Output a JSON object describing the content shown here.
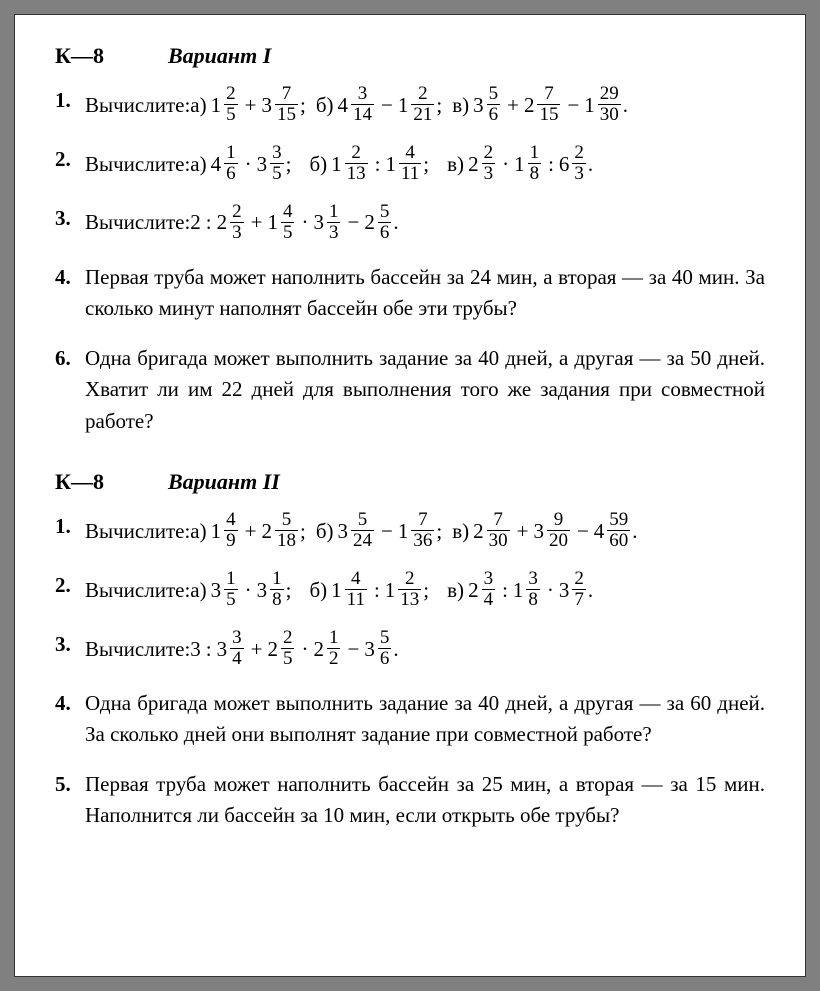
{
  "border_color": "#808080",
  "page_bg": "#ffffff",
  "text_color": "#000000",
  "font_family": "Georgia, Times New Roman, serif",
  "font_size_main": 21,
  "font_size_header": 22,
  "variants": [
    {
      "k_label": "К—8",
      "variant_label": "Вариант I",
      "problems": [
        {
          "num": "1.",
          "type": "math",
          "prefix": "Вычислите: ",
          "parts": [
            {
              "label": "а)",
              "terms": [
                {
                  "w": "1",
                  "n": "2",
                  "d": "5"
                },
                "+",
                {
                  "w": "3",
                  "n": "7",
                  "d": "15"
                }
              ],
              "suffix": ";"
            },
            {
              "label": "б)",
              "terms": [
                {
                  "w": "4",
                  "n": "3",
                  "d": "14"
                },
                "−",
                {
                  "w": "1",
                  "n": "2",
                  "d": "21"
                }
              ],
              "suffix": ";"
            },
            {
              "label": "в)",
              "terms": [
                {
                  "w": "3",
                  "n": "5",
                  "d": "6"
                },
                "+",
                {
                  "w": "2",
                  "n": "7",
                  "d": "15"
                },
                "−",
                {
                  "w": "1",
                  "n": "29",
                  "d": "30"
                }
              ],
              "suffix": "."
            }
          ]
        },
        {
          "num": "2.",
          "type": "math",
          "prefix": "Вычислите: ",
          "parts": [
            {
              "label": "а)",
              "terms": [
                {
                  "w": "4",
                  "n": "1",
                  "d": "6"
                },
                "·",
                {
                  "w": "3",
                  "n": "3",
                  "d": "5"
                }
              ],
              "suffix": ";",
              "wide": true
            },
            {
              "label": "б)",
              "terms": [
                {
                  "w": "1",
                  "n": "2",
                  "d": "13"
                },
                ":",
                {
                  "w": "1",
                  "n": "4",
                  "d": "11"
                }
              ],
              "suffix": ";",
              "wide": true
            },
            {
              "label": "в)",
              "terms": [
                {
                  "w": "2",
                  "n": "2",
                  "d": "3"
                },
                "·",
                {
                  "w": "1",
                  "n": "1",
                  "d": "8"
                },
                ":",
                {
                  "w": "6",
                  "n": "2",
                  "d": "3"
                }
              ],
              "suffix": "."
            }
          ]
        },
        {
          "num": "3.",
          "type": "math",
          "prefix": "Вычислите: ",
          "parts": [
            {
              "label": "",
              "terms": [
                "2",
                ":",
                {
                  "w": "2",
                  "n": "2",
                  "d": "3"
                },
                "+",
                {
                  "w": "1",
                  "n": "4",
                  "d": "5"
                },
                "·",
                {
                  "w": "3",
                  "n": "1",
                  "d": "3"
                },
                "−",
                {
                  "w": "2",
                  "n": "5",
                  "d": "6"
                }
              ],
              "suffix": "."
            }
          ]
        },
        {
          "num": "4.",
          "type": "text",
          "text": "Первая труба может наполнить бассейн за 24 мин, а вторая — за 40 мин. За сколько минут наполнят бассейн обе эти трубы?"
        },
        {
          "num": "6.",
          "type": "text",
          "text": "Одна бригада может выполнить задание за 40 дней, а другая — за 50 дней. Хватит ли им 22 дней для выполнения того же задания при совместной работе?"
        }
      ]
    },
    {
      "k_label": "К—8",
      "variant_label": "Вариант II",
      "problems": [
        {
          "num": "1.",
          "type": "math",
          "prefix": "Вычислите: ",
          "parts": [
            {
              "label": "а)",
              "terms": [
                {
                  "w": "1",
                  "n": "4",
                  "d": "9"
                },
                "+",
                {
                  "w": "2",
                  "n": "5",
                  "d": "18"
                }
              ],
              "suffix": ";"
            },
            {
              "label": "б)",
              "terms": [
                {
                  "w": "3",
                  "n": "5",
                  "d": "24"
                },
                "−",
                {
                  "w": "1",
                  "n": "7",
                  "d": "36"
                }
              ],
              "suffix": ";"
            },
            {
              "label": "в)",
              "terms": [
                {
                  "w": "2",
                  "n": "7",
                  "d": "30"
                },
                "+",
                {
                  "w": "3",
                  "n": "9",
                  "d": "20"
                },
                "−",
                {
                  "w": "4",
                  "n": "59",
                  "d": "60"
                }
              ],
              "suffix": "."
            }
          ]
        },
        {
          "num": "2.",
          "type": "math",
          "prefix": "Вычислите: ",
          "parts": [
            {
              "label": "а)",
              "terms": [
                {
                  "w": "3",
                  "n": "1",
                  "d": "5"
                },
                "·",
                {
                  "w": "3",
                  "n": "1",
                  "d": "8"
                }
              ],
              "suffix": ";",
              "wide": true
            },
            {
              "label": "б)",
              "terms": [
                {
                  "w": "1",
                  "n": "4",
                  "d": "11"
                },
                ":",
                {
                  "w": "1",
                  "n": "2",
                  "d": "13"
                }
              ],
              "suffix": ";",
              "wide": true
            },
            {
              "label": "в)",
              "terms": [
                {
                  "w": "2",
                  "n": "3",
                  "d": "4"
                },
                ":",
                {
                  "w": "1",
                  "n": "3",
                  "d": "8"
                },
                "·",
                {
                  "w": "3",
                  "n": "2",
                  "d": "7"
                }
              ],
              "suffix": "."
            }
          ]
        },
        {
          "num": "3.",
          "type": "math",
          "prefix": "Вычислите: ",
          "parts": [
            {
              "label": "",
              "terms": [
                "3",
                ":",
                {
                  "w": "3",
                  "n": "3",
                  "d": "4"
                },
                "+",
                {
                  "w": "2",
                  "n": "2",
                  "d": "5"
                },
                "·",
                {
                  "w": "2",
                  "n": "1",
                  "d": "2"
                },
                "−",
                {
                  "w": "3",
                  "n": "5",
                  "d": "6"
                }
              ],
              "suffix": "."
            }
          ]
        },
        {
          "num": "4.",
          "type": "text",
          "text": "Одна бригада может выполнить задание за 40 дней, а другая — за 60 дней. За сколько дней они выполнят задание при совместной работе?"
        },
        {
          "num": "5.",
          "type": "text",
          "text": "Первая труба может наполнить бассейн за 25 мин, а вторая — за 15 мин. Наполнится ли бассейн за 10 мин, если открыть обе трубы?"
        }
      ]
    }
  ]
}
